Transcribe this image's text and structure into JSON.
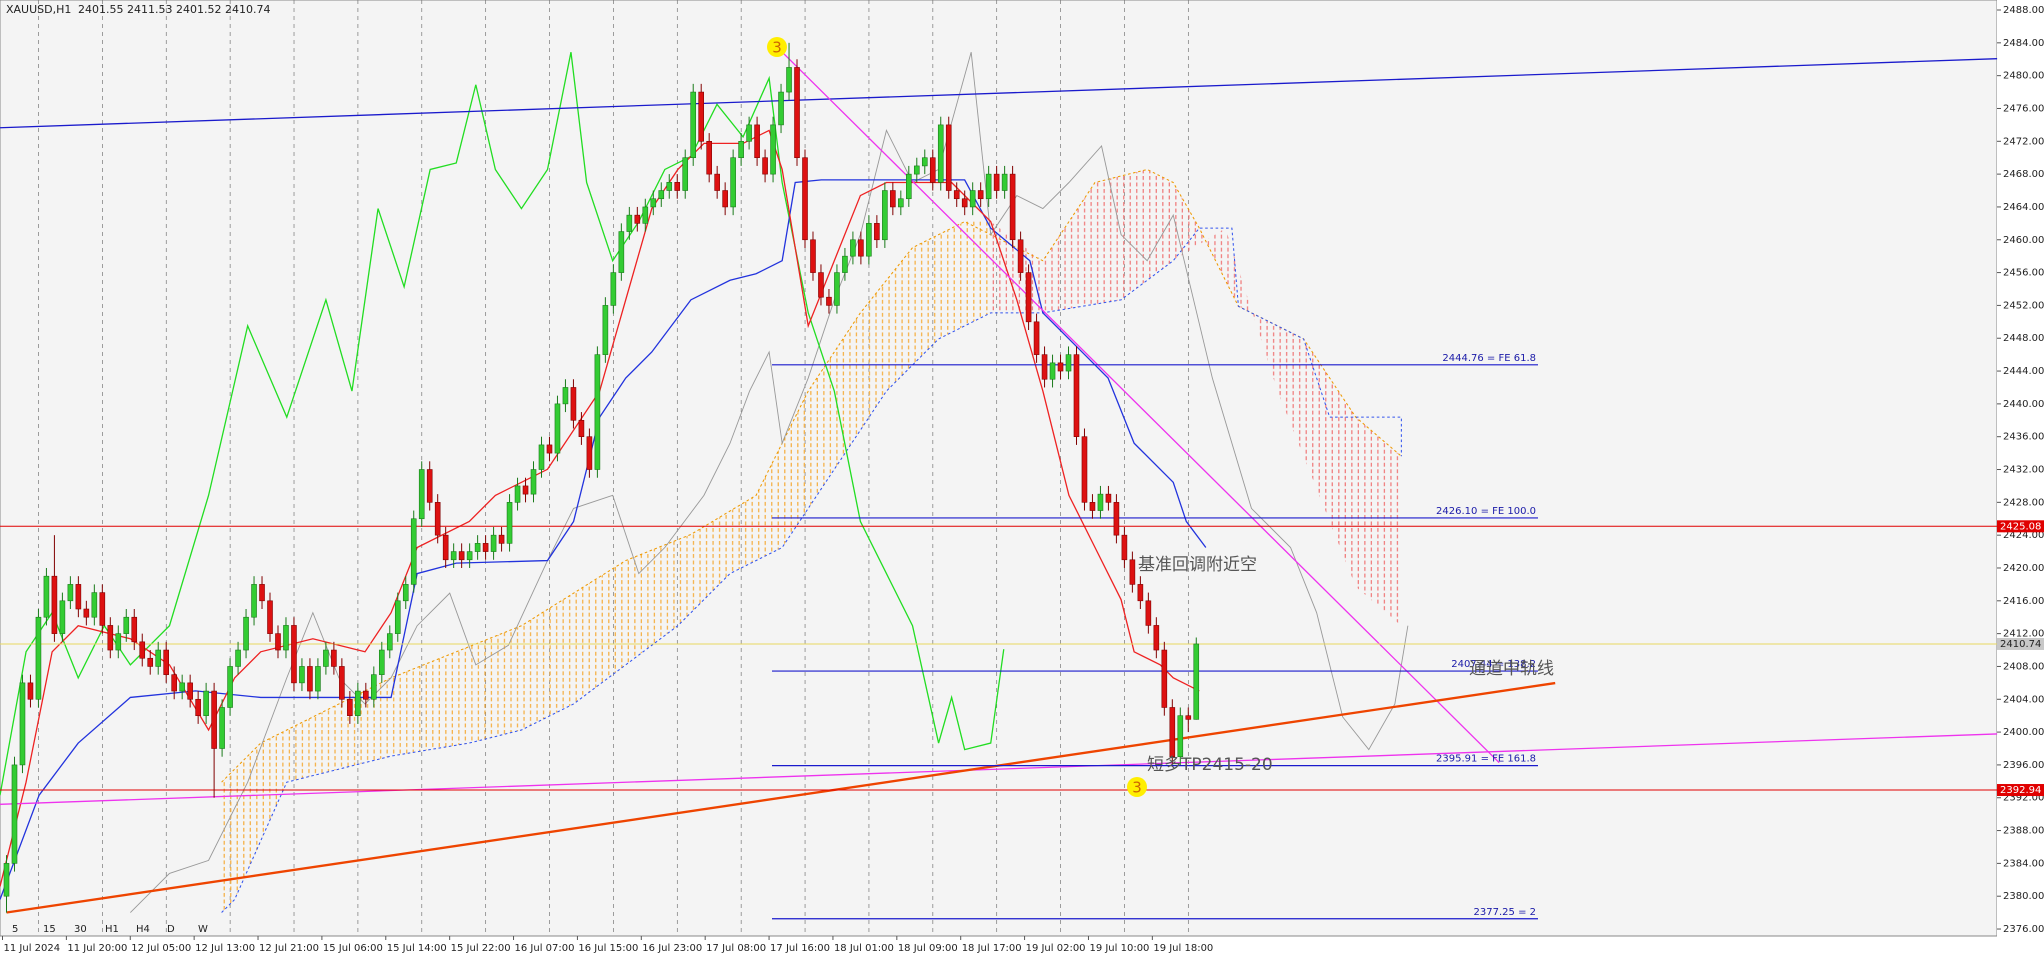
{
  "chart_data": {
    "type": "candlestick",
    "title": "XAUUSD,H1",
    "subtitle": "2401.55 2411.53 2401.52 2410.74",
    "timeframes": [
      "5",
      "15",
      "30",
      "H1",
      "H4",
      "D",
      "W"
    ],
    "categories": [
      "11 Jul 2024",
      null,
      null,
      null,
      null,
      null,
      null,
      null,
      "11 Jul 20:00",
      null,
      null,
      null,
      null,
      null,
      null,
      null,
      "12 Jul 05:00",
      null,
      null,
      null,
      null,
      null,
      null,
      null,
      "12 Jul 13:00",
      null,
      null,
      null,
      null,
      null,
      null,
      null,
      "12 Jul 21:00",
      null,
      null,
      null,
      null,
      null,
      null,
      null,
      "15 Jul 06:00",
      null,
      null,
      null,
      null,
      null,
      null,
      null,
      "15 Jul 14:00",
      null,
      null,
      null,
      null,
      null,
      null,
      null,
      "15 Jul 22:00",
      null,
      null,
      null,
      null,
      null,
      null,
      null,
      "16 Jul 07:00",
      null,
      null,
      null,
      null,
      null,
      null,
      null,
      "16 Jul 15:00",
      null,
      null,
      null,
      null,
      null,
      null,
      null,
      "16 Jul 23:00",
      null,
      null,
      null,
      null,
      null,
      null,
      null,
      "17 Jul 08:00",
      null,
      null,
      null,
      null,
      null,
      null,
      null,
      "17 Jul 16:00",
      null,
      null,
      null,
      null,
      null,
      null,
      null,
      "18 Jul 01:00",
      null,
      null,
      null,
      null,
      null,
      null,
      null,
      "18 Jul 09:00",
      null,
      null,
      null,
      null,
      null,
      null,
      null,
      "18 Jul 17:00",
      null,
      null,
      null,
      null,
      null,
      null,
      null,
      "19 Jul 02:00",
      null,
      null,
      null,
      null,
      null,
      null,
      null,
      "19 Jul 10:00",
      null,
      null,
      null,
      null,
      null,
      null,
      null,
      "19 Jul 18:00",
      null,
      null,
      null,
      null,
      null
    ],
    "open": [
      2380,
      2384,
      2396,
      2406,
      2404,
      2414,
      2419,
      2412,
      2416,
      2418,
      2415,
      2414,
      2417,
      2413,
      2410,
      2412,
      2414,
      2411,
      2409,
      2408,
      2410,
      2407,
      2405,
      2406,
      2404,
      2402,
      2405,
      2398,
      2403,
      2408,
      2410,
      2414,
      2418,
      2416,
      2412,
      2410,
      2413,
      2406,
      2408,
      2405,
      2408,
      2410,
      2408,
      2404,
      2402,
      2405,
      2404,
      2407,
      2410,
      2412,
      2416,
      2418,
      2426,
      2432,
      2428,
      2424,
      2421,
      2422,
      2421,
      2422,
      2423,
      2422,
      2424,
      2423,
      2428,
      2430,
      2429,
      2432,
      2435,
      2434,
      2440,
      2442,
      2438,
      2436,
      2432,
      2446,
      2452,
      2456,
      2461,
      2463,
      2462,
      2464,
      2465,
      2466,
      2467,
      2466,
      2470,
      2478,
      2472,
      2468,
      2466,
      2464,
      2470,
      2472,
      2474,
      2470,
      2468,
      2474,
      2478,
      2481,
      2470,
      2460,
      2456,
      2453,
      2452,
      2456,
      2458,
      2460,
      2458,
      2462,
      2460,
      2466,
      2464,
      2465,
      2468,
      2469,
      2470,
      2467,
      2474,
      2466,
      2465,
      2464,
      2466,
      2465,
      2468,
      2466,
      2468,
      2460,
      2456,
      2450,
      2446,
      2443,
      2445,
      2444,
      2446,
      2436,
      2428,
      2427,
      2429,
      2428,
      2424,
      2421,
      2418,
      2416,
      2413,
      2410,
      2403,
      2397,
      2402,
      2401.55
    ],
    "high": [
      2385,
      2397,
      2407,
      2407,
      2415,
      2420,
      2424,
      2417,
      2419,
      2419,
      2416,
      2418,
      2418,
      2414,
      2413,
      2415,
      2415,
      2412,
      2410,
      2411,
      2411,
      2408,
      2407,
      2407,
      2405,
      2406,
      2406,
      2404,
      2409,
      2411,
      2415,
      2419,
      2419,
      2417,
      2413,
      2414,
      2414,
      2409,
      2409,
      2409,
      2411,
      2411,
      2409,
      2405,
      2406,
      2406,
      2408,
      2411,
      2413,
      2417,
      2419,
      2427,
      2433,
      2433,
      2429,
      2425,
      2423,
      2423,
      2423,
      2424,
      2424,
      2425,
      2425,
      2429,
      2431,
      2431,
      2433,
      2436,
      2436,
      2441,
      2443,
      2443,
      2439,
      2437,
      2447,
      2453,
      2457,
      2462,
      2464,
      2464,
      2465,
      2466,
      2467,
      2468,
      2468,
      2471,
      2479,
      2479,
      2473,
      2469,
      2467,
      2471,
      2473,
      2475,
      2475,
      2471,
      2475,
      2479,
      2484,
      2482,
      2471,
      2461,
      2457,
      2454,
      2457,
      2459,
      2461,
      2461,
      2463,
      2463,
      2467,
      2467,
      2466,
      2469,
      2470,
      2471,
      2471,
      2475,
      2475,
      2467,
      2466,
      2467,
      2467,
      2469,
      2469,
      2469,
      2469,
      2461,
      2457,
      2451,
      2447,
      2446,
      2446,
      2447,
      2447,
      2437,
      2429,
      2430,
      2430,
      2429,
      2425,
      2422,
      2419,
      2417,
      2414,
      2411,
      2404,
      2403,
      2403,
      2411.53
    ],
    "low": [
      2378,
      2383,
      2395,
      2403,
      2403,
      2413,
      2411,
      2411,
      2415,
      2414,
      2413,
      2413,
      2412,
      2409,
      2409,
      2411,
      2410,
      2408,
      2407,
      2407,
      2406,
      2404,
      2404,
      2403,
      2401,
      2401,
      2392,
      2397,
      2402,
      2407,
      2409,
      2413,
      2415,
      2411,
      2409,
      2409,
      2405,
      2405,
      2404,
      2404,
      2407,
      2407,
      2403,
      2401,
      2401,
      2403,
      2403,
      2406,
      2409,
      2411,
      2415,
      2417,
      2425,
      2427,
      2423,
      2420,
      2420,
      2420,
      2420,
      2421,
      2421,
      2421,
      2422,
      2422,
      2427,
      2428,
      2428,
      2431,
      2433,
      2433,
      2439,
      2437,
      2435,
      2431,
      2431,
      2445,
      2451,
      2455,
      2460,
      2461,
      2461,
      2463,
      2464,
      2465,
      2465,
      2465,
      2469,
      2471,
      2467,
      2465,
      2463,
      2463,
      2469,
      2471,
      2469,
      2467,
      2467,
      2473,
      2477,
      2469,
      2459,
      2455,
      2452,
      2451,
      2451,
      2455,
      2457,
      2457,
      2457,
      2459,
      2459,
      2463,
      2463,
      2464,
      2467,
      2468,
      2466,
      2466,
      2465,
      2464,
      2463,
      2463,
      2464,
      2464,
      2465,
      2465,
      2459,
      2455,
      2449,
      2445,
      2442,
      2442,
      2443,
      2443,
      2435,
      2427,
      2426,
      2426,
      2427,
      2423,
      2420,
      2417,
      2415,
      2412,
      2409,
      2402,
      2396,
      2396,
      2400,
      2401.52
    ],
    "close": [
      2384,
      2396,
      2406,
      2404,
      2414,
      2419,
      2412,
      2416,
      2418,
      2415,
      2414,
      2417,
      2413,
      2410,
      2412,
      2414,
      2411,
      2409,
      2408,
      2410,
      2407,
      2405,
      2406,
      2404,
      2402,
      2405,
      2398,
      2403,
      2408,
      2410,
      2414,
      2418,
      2416,
      2412,
      2410,
      2413,
      2406,
      2408,
      2405,
      2408,
      2410,
      2408,
      2404,
      2402,
      2405,
      2404,
      2407,
      2410,
      2412,
      2416,
      2418,
      2426,
      2432,
      2428,
      2424,
      2421,
      2422,
      2421,
      2422,
      2423,
      2422,
      2424,
      2423,
      2428,
      2430,
      2429,
      2432,
      2435,
      2434,
      2440,
      2442,
      2438,
      2436,
      2432,
      2446,
      2452,
      2456,
      2461,
      2463,
      2462,
      2464,
      2465,
      2466,
      2467,
      2466,
      2470,
      2478,
      2472,
      2468,
      2466,
      2464,
      2470,
      2472,
      2474,
      2470,
      2468,
      2474,
      2478,
      2481,
      2470,
      2460,
      2456,
      2453,
      2452,
      2456,
      2458,
      2460,
      2458,
      2462,
      2460,
      2466,
      2464,
      2465,
      2468,
      2469,
      2470,
      2467,
      2474,
      2466,
      2465,
      2464,
      2466,
      2465,
      2468,
      2466,
      2468,
      2460,
      2456,
      2450,
      2446,
      2443,
      2445,
      2444,
      2446,
      2436,
      2428,
      2427,
      2429,
      2428,
      2424,
      2421,
      2418,
      2416,
      2413,
      2410,
      2403,
      2397,
      2402,
      2401.55,
      2410.74
    ],
    "up_color": "#33cc33",
    "down_color": "#dd1111",
    "ylim": [
      2375.15,
      2489.22
    ],
    "yticks": [
      {
        "value": 2376,
        "label": "2376.00"
      },
      {
        "value": 2380,
        "label": "2380.00"
      },
      {
        "value": 2384,
        "label": "2384.00"
      },
      {
        "value": 2388,
        "label": "2388.00"
      },
      {
        "value": 2392,
        "label": "2392.00"
      },
      {
        "value": 2396,
        "label": "2396.00"
      },
      {
        "value": 2400,
        "label": "2400.00"
      },
      {
        "value": 2404,
        "label": "2404.00"
      },
      {
        "value": 2408,
        "label": "2408.00"
      },
      {
        "value": 2412,
        "label": "2412.00"
      },
      {
        "value": 2416,
        "label": "2416.00"
      },
      {
        "value": 2420,
        "label": "2420.00"
      },
      {
        "value": 2424,
        "label": "2424.00"
      },
      {
        "value": 2428,
        "label": "2428.00"
      },
      {
        "value": 2432,
        "label": "2432.00"
      },
      {
        "value": 2436,
        "label": "2436.00"
      },
      {
        "value": 2440,
        "label": "2440.00"
      },
      {
        "value": 2444,
        "label": "2444.00"
      },
      {
        "value": 2448,
        "label": "2448.00"
      },
      {
        "value": 2452,
        "label": "2452.00"
      },
      {
        "value": 2456,
        "label": "2456.00"
      },
      {
        "value": 2460,
        "label": "2460.00"
      },
      {
        "value": 2464,
        "label": "2464.00"
      },
      {
        "value": 2468,
        "label": "2468.00"
      },
      {
        "value": 2472,
        "label": "2472.00"
      },
      {
        "value": 2476,
        "label": "2476.00"
      },
      {
        "value": 2480,
        "label": "2480.00"
      },
      {
        "value": 2484,
        "label": "2484.00"
      },
      {
        "value": 2488,
        "label": "2488.00"
      }
    ],
    "price_levels": [
      {
        "value": 2425.08,
        "color": "#e00000",
        "label_color": "#ffffff"
      },
      {
        "value": 2410.74,
        "color": "#c8c8c8",
        "label_color": "#222222"
      },
      {
        "value": 2392.94,
        "color": "#e00000",
        "label_color": "#ffffff"
      }
    ],
    "fe_levels": [
      {
        "value": 2444.76,
        "label": "2444.76 = FE 61.8"
      },
      {
        "value": 2426.1,
        "label": "2426.10 = FE 100.0"
      },
      {
        "value": 2407.44,
        "label": "2407.44 = 138.2"
      },
      {
        "value": 2395.91,
        "label": "2395.91 = FE 161.8"
      },
      {
        "value": 2377.25,
        "label": "2377.25 = 2"
      }
    ],
    "annotations": [
      "基准回调附近空",
      "通道中轨线",
      "短多TP2415-20"
    ],
    "wave_labels": [
      "3",
      "3"
    ]
  }
}
